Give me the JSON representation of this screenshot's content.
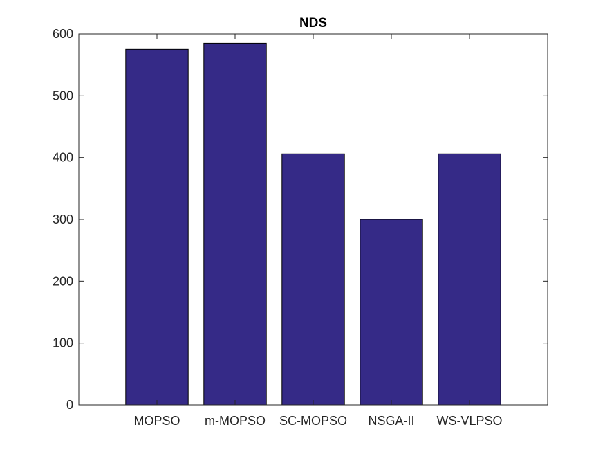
{
  "chart_data": {
    "type": "bar",
    "title": "NDS",
    "xlabel": "",
    "ylabel": "",
    "categories": [
      "MOPSO",
      "m-MOPSO",
      "SC-MOPSO",
      "NSGA-II",
      "WS-VLPSO"
    ],
    "values": [
      575,
      585,
      406,
      300,
      406
    ],
    "ylim": [
      0,
      600
    ],
    "yticks": [
      0,
      100,
      200,
      300,
      400,
      500,
      600
    ],
    "grid": false,
    "legend": "none",
    "colors": {
      "bar": "#352a87",
      "bar_edge": "#000000",
      "axis": "#262626"
    }
  }
}
